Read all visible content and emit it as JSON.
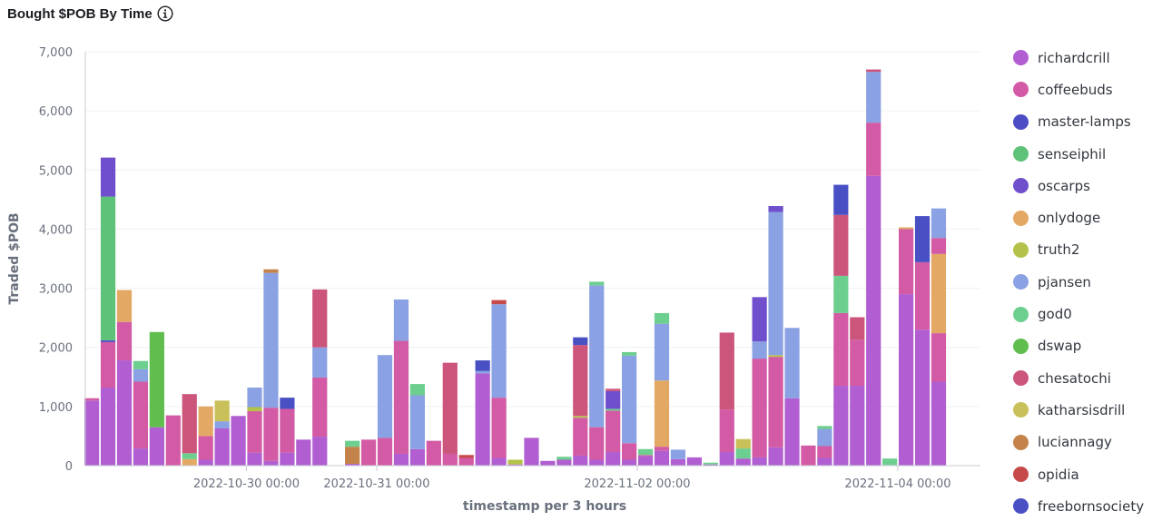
{
  "title": "Bought $POB By Time",
  "chart_data": {
    "type": "bar",
    "stacked": true,
    "title": "Bought $POB By Time",
    "xlabel": "timestamp per 3 hours",
    "ylabel": "Traded $POB",
    "ylim": [
      0,
      7000
    ],
    "y_ticks": [
      0,
      1000,
      2000,
      3000,
      4000,
      5000,
      6000,
      7000
    ],
    "y_tick_labels": [
      "0",
      "1,000",
      "2,000",
      "3,000",
      "4,000",
      "5,000",
      "6,000",
      "7,000"
    ],
    "x_tick_labels": [
      {
        "label": "2022-10-30 00:00",
        "at": 10
      },
      {
        "label": "2022-10-31 00:00",
        "at": 18
      },
      {
        "label": "2022-11-02 00:00",
        "at": 34
      },
      {
        "label": "2022-11-04 00:00",
        "at": 50
      }
    ],
    "grid": true,
    "legend_position": "right",
    "series_names": [
      "richardcrill",
      "coffeebuds",
      "master-lamps",
      "senseiphil",
      "oscarps",
      "onlydoge",
      "truth2",
      "pjansen",
      "god0",
      "dswap",
      "chesatochi",
      "katharsisdrill",
      "luciannagy",
      "opidia",
      "freebornsociety"
    ],
    "series_colors": [
      "#b05ed1",
      "#d35aa4",
      "#4c4cc4",
      "#5ec279",
      "#6f4fcc",
      "#e3a863",
      "#b4c24a",
      "#8aa1e3",
      "#6cce8f",
      "#60be4e",
      "#cc557b",
      "#c9c05a",
      "#c4834a",
      "#c74a4a",
      "#4850c4"
    ],
    "bars": [
      {
        "label": "",
        "segments": [
          [
            0,
            1100
          ],
          [
            1,
            40
          ]
        ]
      },
      {
        "label": "",
        "segments": [
          [
            0,
            1320
          ],
          [
            1,
            770
          ],
          [
            2,
            30
          ],
          [
            3,
            2430
          ],
          [
            4,
            660
          ]
        ]
      },
      {
        "label": "",
        "segments": [
          [
            0,
            1780
          ],
          [
            1,
            650
          ],
          [
            5,
            540
          ]
        ]
      },
      {
        "label": "",
        "segments": [
          [
            0,
            290
          ],
          [
            1,
            1130
          ],
          [
            7,
            210
          ],
          [
            8,
            140
          ]
        ]
      },
      {
        "label": "",
        "segments": [
          [
            0,
            650
          ],
          [
            9,
            1610
          ]
        ]
      },
      {
        "label": "",
        "segments": [
          [
            1,
            850
          ]
        ]
      },
      {
        "label": "",
        "segments": [
          [
            5,
            110
          ],
          [
            8,
            100
          ],
          [
            10,
            1000
          ]
        ]
      },
      {
        "label": "",
        "segments": [
          [
            0,
            100
          ],
          [
            1,
            400
          ],
          [
            5,
            500
          ]
        ]
      },
      {
        "label": "",
        "segments": [
          [
            0,
            630
          ],
          [
            7,
            120
          ],
          [
            11,
            350
          ]
        ]
      },
      {
        "label": "",
        "segments": [
          [
            0,
            840
          ]
        ]
      },
      {
        "label": "",
        "segments": [
          [
            0,
            220
          ],
          [
            1,
            700
          ],
          [
            6,
            70
          ],
          [
            7,
            330
          ]
        ]
      },
      {
        "label": "",
        "segments": [
          [
            0,
            80
          ],
          [
            1,
            900
          ],
          [
            7,
            2280
          ],
          [
            12,
            60
          ]
        ]
      },
      {
        "label": "",
        "segments": [
          [
            0,
            220
          ],
          [
            1,
            740
          ],
          [
            14,
            190
          ]
        ]
      },
      {
        "label": "",
        "segments": [
          [
            0,
            440
          ]
        ]
      },
      {
        "label": "",
        "segments": [
          [
            0,
            490
          ],
          [
            1,
            1000
          ],
          [
            7,
            510
          ],
          [
            10,
            980
          ]
        ]
      },
      {
        "label": "",
        "segments": []
      },
      {
        "label": "",
        "segments": [
          [
            0,
            30
          ],
          [
            12,
            290
          ],
          [
            8,
            100
          ]
        ]
      },
      {
        "label": "",
        "segments": [
          [
            1,
            440
          ]
        ]
      },
      {
        "label": "",
        "segments": [
          [
            1,
            470
          ],
          [
            7,
            1400
          ]
        ]
      },
      {
        "label": "",
        "segments": [
          [
            0,
            200
          ],
          [
            1,
            1910
          ],
          [
            7,
            700
          ]
        ]
      },
      {
        "label": "",
        "segments": [
          [
            0,
            280
          ],
          [
            7,
            910
          ],
          [
            8,
            190
          ]
        ]
      },
      {
        "label": "",
        "segments": [
          [
            1,
            420
          ]
        ]
      },
      {
        "label": "",
        "segments": [
          [
            1,
            200
          ],
          [
            10,
            1540
          ]
        ]
      },
      {
        "label": "",
        "segments": [
          [
            1,
            130
          ],
          [
            13,
            50
          ]
        ]
      },
      {
        "label": "",
        "segments": [
          [
            0,
            1560
          ],
          [
            7,
            40
          ],
          [
            14,
            180
          ]
        ]
      },
      {
        "label": "",
        "segments": [
          [
            0,
            130
          ],
          [
            1,
            1020
          ],
          [
            7,
            1580
          ],
          [
            13,
            70
          ]
        ]
      },
      {
        "label": "",
        "segments": [
          [
            0,
            20
          ],
          [
            6,
            80
          ]
        ]
      },
      {
        "label": "",
        "segments": [
          [
            0,
            470
          ]
        ]
      },
      {
        "label": "",
        "segments": [
          [
            0,
            80
          ]
        ]
      },
      {
        "label": "",
        "segments": [
          [
            0,
            100
          ],
          [
            8,
            50
          ]
        ]
      },
      {
        "label": "",
        "segments": [
          [
            0,
            170
          ],
          [
            1,
            640
          ],
          [
            6,
            30
          ],
          [
            10,
            1200
          ],
          [
            14,
            130
          ]
        ]
      },
      {
        "label": "",
        "segments": [
          [
            0,
            100
          ],
          [
            1,
            550
          ],
          [
            7,
            2400
          ],
          [
            8,
            60
          ]
        ]
      },
      {
        "label": "",
        "segments": [
          [
            0,
            230
          ],
          [
            1,
            700
          ],
          [
            8,
            30
          ],
          [
            4,
            300
          ],
          [
            10,
            40
          ]
        ]
      },
      {
        "label": "",
        "segments": [
          [
            0,
            100
          ],
          [
            1,
            280
          ],
          [
            7,
            1480
          ],
          [
            8,
            60
          ]
        ]
      },
      {
        "label": "",
        "segments": [
          [
            0,
            160
          ],
          [
            1,
            20
          ],
          [
            8,
            100
          ]
        ]
      },
      {
        "label": "",
        "segments": [
          [
            0,
            250
          ],
          [
            1,
            70
          ],
          [
            5,
            1120
          ],
          [
            7,
            960
          ],
          [
            8,
            180
          ]
        ]
      },
      {
        "label": "",
        "segments": [
          [
            0,
            110
          ],
          [
            7,
            160
          ]
        ]
      },
      {
        "label": "",
        "segments": [
          [
            0,
            140
          ]
        ]
      },
      {
        "label": "",
        "segments": [
          [
            0,
            20
          ],
          [
            8,
            30
          ]
        ]
      },
      {
        "label": "",
        "segments": [
          [
            0,
            230
          ],
          [
            1,
            720
          ],
          [
            10,
            1300
          ]
        ]
      },
      {
        "label": "",
        "segments": [
          [
            0,
            120
          ],
          [
            8,
            170
          ],
          [
            11,
            160
          ]
        ]
      },
      {
        "label": "",
        "segments": [
          [
            0,
            140
          ],
          [
            1,
            1670
          ],
          [
            7,
            290
          ],
          [
            4,
            750
          ]
        ]
      },
      {
        "label": "",
        "segments": [
          [
            0,
            310
          ],
          [
            1,
            1530
          ],
          [
            6,
            30
          ],
          [
            7,
            2420
          ],
          [
            4,
            100
          ]
        ]
      },
      {
        "label": "",
        "segments": [
          [
            0,
            1140
          ],
          [
            7,
            1190
          ]
        ]
      },
      {
        "label": "",
        "segments": [
          [
            1,
            340
          ]
        ]
      },
      {
        "label": "",
        "segments": [
          [
            0,
            130
          ],
          [
            1,
            200
          ],
          [
            7,
            290
          ],
          [
            8,
            50
          ]
        ]
      },
      {
        "label": "",
        "segments": [
          [
            0,
            1350
          ],
          [
            1,
            1230
          ],
          [
            8,
            630
          ],
          [
            10,
            1030
          ],
          [
            14,
            510
          ]
        ]
      },
      {
        "label": "",
        "segments": [
          [
            0,
            1350
          ],
          [
            1,
            780
          ],
          [
            10,
            380
          ]
        ]
      },
      {
        "label": "",
        "segments": [
          [
            0,
            4900
          ],
          [
            1,
            900
          ],
          [
            7,
            860
          ],
          [
            10,
            40
          ]
        ]
      },
      {
        "label": "",
        "segments": [
          [
            0,
            10
          ],
          [
            8,
            110
          ]
        ]
      },
      {
        "label": "",
        "segments": [
          [
            0,
            2900
          ],
          [
            1,
            1100
          ],
          [
            5,
            30
          ]
        ]
      },
      {
        "label": "",
        "segments": [
          [
            0,
            2300
          ],
          [
            1,
            1140
          ],
          [
            14,
            780
          ]
        ]
      },
      {
        "label": "",
        "segments": [
          [
            0,
            1420
          ],
          [
            1,
            820
          ],
          [
            5,
            1340
          ],
          [
            1,
            270
          ],
          [
            7,
            500
          ]
        ]
      }
    ]
  }
}
